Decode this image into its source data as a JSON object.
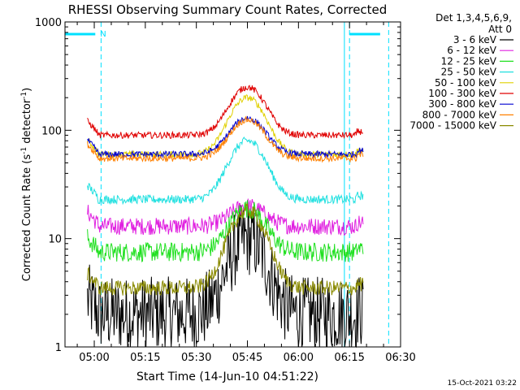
{
  "chart_data": {
    "type": "line",
    "title": "RHESSI Observing Summary Count Rates, Corrected",
    "xlabel": "Start Time (14-Jun-10 04:51:22)",
    "ylabel_main": "Corrected Count Rate (s",
    "ylabel_sup1": "-1",
    "ylabel_mid": " detector",
    "ylabel_sup2": "-1",
    "ylabel_end": ")",
    "yscale": "log",
    "ylim": [
      1,
      1000
    ],
    "y_ticks": [
      {
        "v": 1,
        "label": "1"
      },
      {
        "v": 10,
        "label": "10"
      },
      {
        "v": 100,
        "label": "100"
      },
      {
        "v": 1000,
        "label": "1000"
      }
    ],
    "xlim_minutes": [
      291.4,
      390.0
    ],
    "x_ticks": [
      {
        "m": 300,
        "label": "05:00"
      },
      {
        "m": 315,
        "label": "05:15"
      },
      {
        "m": 330,
        "label": "05:30"
      },
      {
        "m": 345,
        "label": "05:45"
      },
      {
        "m": 360,
        "label": "06:00"
      },
      {
        "m": 375,
        "label": "06:15"
      },
      {
        "m": 390,
        "label": "06:30"
      }
    ],
    "legend_header": [
      "Det 1,3,4,5,6,9,",
      "Att 0"
    ],
    "legend_position": "right",
    "date_stamp": "15-Oct-2021 03:22",
    "time_span_minutes": [
      298.0,
      379.0
    ],
    "peak_minute": 345.0,
    "night_bars": [
      {
        "from": 291.4,
        "to": 300.3,
        "label": "N"
      },
      {
        "from": 375.0,
        "to": 384.0,
        "label": ""
      }
    ],
    "night_boundaries_dashed": [
      302.0,
      375.0,
      386.5
    ],
    "night_boundaries_solid": [
      291.4,
      373.5
    ],
    "series": [
      {
        "name": "3 - 6 keV",
        "color": "#000000",
        "base": 2.0,
        "peak": 10.0,
        "noise": 0.35
      },
      {
        "name": "6 - 12 keV",
        "color": "#e020e0",
        "base": 13.0,
        "peak": 20.0,
        "noise": 0.08
      },
      {
        "name": "12 - 25 keV",
        "color": "#20e020",
        "base": 7.5,
        "peak": 19.0,
        "noise": 0.09
      },
      {
        "name": "25 - 50 keV",
        "color": "#20e0e0",
        "base": 23.0,
        "peak": 80.0,
        "noise": 0.04
      },
      {
        "name": "50 - 100 keV",
        "color": "#e0d000",
        "base": 60.0,
        "peak": 200.0,
        "noise": 0.03
      },
      {
        "name": "100 - 300 keV",
        "color": "#e00000",
        "base": 90.0,
        "peak": 250.0,
        "noise": 0.03
      },
      {
        "name": "300 - 800 keV",
        "color": "#0000d0",
        "base": 60.0,
        "peak": 130.0,
        "noise": 0.03
      },
      {
        "name": "800 - 7000 keV",
        "color": "#ff8000",
        "base": 55.0,
        "peak": 125.0,
        "noise": 0.03
      },
      {
        "name": "7000 - 15000 keV",
        "color": "#8a8a00",
        "base": 3.5,
        "peak": 18.0,
        "noise": 0.07
      }
    ]
  }
}
